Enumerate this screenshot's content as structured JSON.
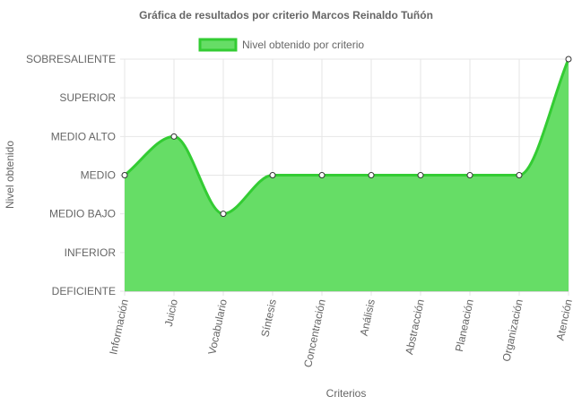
{
  "chart_data": {
    "type": "area",
    "title": "Gráfica de resultados por criterio Marcos Reinaldo Tuñón",
    "xlabel": "Criterios",
    "ylabel": "Nivel obtenido",
    "categories": [
      "Información",
      "Juicio",
      "Vocabulario",
      "Síntesis",
      "Concentración",
      "Análisis",
      "Abstracción",
      "Planeación",
      "Organización",
      "Atención"
    ],
    "y_levels": [
      "DEFICIENTE",
      "INFERIOR",
      "MEDIO BAJO",
      "MEDIO",
      "MEDIO ALTO",
      "SUPERIOR",
      "SOBRESALIENTE"
    ],
    "series": [
      {
        "name": "Nivel obtenido por criterio",
        "values": [
          "MEDIO",
          "MEDIO ALTO",
          "MEDIO BAJO",
          "MEDIO",
          "MEDIO",
          "MEDIO",
          "MEDIO",
          "MEDIO",
          "MEDIO",
          "SOBRESALIENTE"
        ]
      }
    ],
    "grid": true,
    "legend_position": "top",
    "colors": {
      "fill": "#66dd66",
      "line": "#33cc33",
      "point_fill": "#ffffff",
      "point_stroke": "#333333"
    }
  }
}
